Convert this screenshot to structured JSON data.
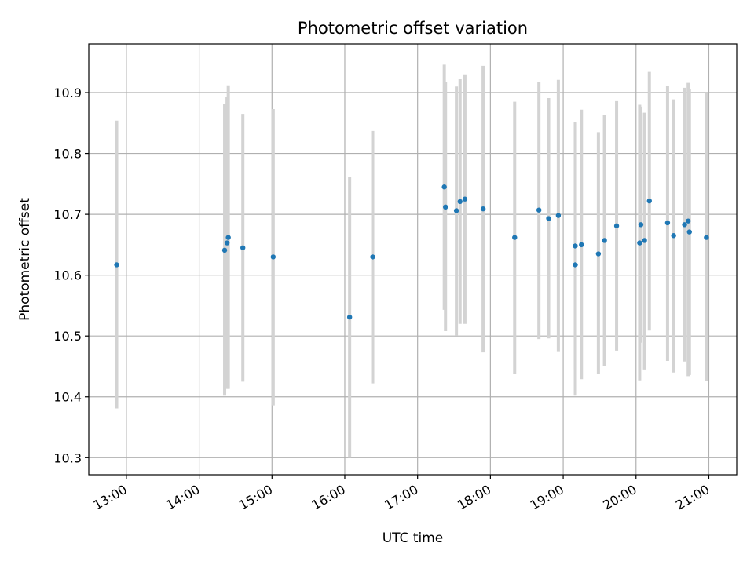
{
  "chart_data": {
    "type": "scatter",
    "title": "Photometric offset variation",
    "xlabel": "UTC time",
    "ylabel": "Photometric offset",
    "x_ticks": [
      "13:00",
      "14:00",
      "15:00",
      "16:00",
      "17:00",
      "18:00",
      "19:00",
      "20:00",
      "21:00"
    ],
    "y_ticks": [
      "10.3",
      "10.4",
      "10.5",
      "10.6",
      "10.7",
      "10.8",
      "10.9"
    ],
    "xlim": [
      "12:29",
      "21:23"
    ],
    "ylim": [
      10.272,
      10.98
    ],
    "grid": true,
    "point_color": "#1f77b4",
    "errorbar_color": "#d3d3d3",
    "points": [
      {
        "t": "12:52",
        "y": 10.617,
        "low": 10.381,
        "high": 10.854
      },
      {
        "t": "14:21",
        "y": 10.641,
        "low": 10.402,
        "high": 10.882
      },
      {
        "t": "14:23",
        "y": 10.653,
        "low": 10.413,
        "high": 10.893
      },
      {
        "t": "14:24",
        "y": 10.662,
        "low": 10.413,
        "high": 10.912
      },
      {
        "t": "14:36",
        "y": 10.645,
        "low": 10.425,
        "high": 10.865
      },
      {
        "t": "15:01",
        "y": 10.63,
        "low": 10.386,
        "high": 10.873
      },
      {
        "t": "16:04",
        "y": 10.531,
        "low": 10.3,
        "high": 10.762
      },
      {
        "t": "16:23",
        "y": 10.63,
        "low": 10.422,
        "high": 10.837
      },
      {
        "t": "17:22",
        "y": 10.745,
        "low": 10.543,
        "high": 10.946
      },
      {
        "t": "17:23",
        "y": 10.712,
        "low": 10.508,
        "high": 10.917
      },
      {
        "t": "17:32",
        "y": 10.706,
        "low": 10.501,
        "high": 10.91
      },
      {
        "t": "17:35",
        "y": 10.721,
        "low": 10.52,
        "high": 10.922
      },
      {
        "t": "17:39",
        "y": 10.725,
        "low": 10.52,
        "high": 10.93
      },
      {
        "t": "17:54",
        "y": 10.709,
        "low": 10.473,
        "high": 10.944
      },
      {
        "t": "18:20",
        "y": 10.662,
        "low": 10.438,
        "high": 10.885
      },
      {
        "t": "18:40",
        "y": 10.707,
        "low": 10.495,
        "high": 10.918
      },
      {
        "t": "18:48",
        "y": 10.693,
        "low": 10.496,
        "high": 10.891
      },
      {
        "t": "18:56",
        "y": 10.698,
        "low": 10.475,
        "high": 10.921
      },
      {
        "t": "19:10",
        "y": 10.617,
        "low": 10.402,
        "high": 10.852
      },
      {
        "t": "19:10",
        "y": 10.648,
        "low": 10.445,
        "high": 10.85
      },
      {
        "t": "19:15",
        "y": 10.65,
        "low": 10.429,
        "high": 10.872
      },
      {
        "t": "19:29",
        "y": 10.635,
        "low": 10.437,
        "high": 10.835
      },
      {
        "t": "19:34",
        "y": 10.657,
        "low": 10.45,
        "high": 10.864
      },
      {
        "t": "19:44",
        "y": 10.681,
        "low": 10.476,
        "high": 10.886
      },
      {
        "t": "20:03",
        "y": 10.653,
        "low": 10.427,
        "high": 10.88
      },
      {
        "t": "20:04",
        "y": 10.683,
        "low": 10.489,
        "high": 10.877
      },
      {
        "t": "20:07",
        "y": 10.657,
        "low": 10.445,
        "high": 10.867
      },
      {
        "t": "20:11",
        "y": 10.722,
        "low": 10.509,
        "high": 10.934
      },
      {
        "t": "20:26",
        "y": 10.686,
        "low": 10.459,
        "high": 10.911
      },
      {
        "t": "20:31",
        "y": 10.665,
        "low": 10.44,
        "high": 10.889
      },
      {
        "t": "20:40",
        "y": 10.683,
        "low": 10.458,
        "high": 10.908
      },
      {
        "t": "20:43",
        "y": 10.689,
        "low": 10.434,
        "high": 10.916
      },
      {
        "t": "20:44",
        "y": 10.671,
        "low": 10.436,
        "high": 10.906
      },
      {
        "t": "20:58",
        "y": 10.662,
        "low": 10.426,
        "high": 10.9
      }
    ]
  }
}
